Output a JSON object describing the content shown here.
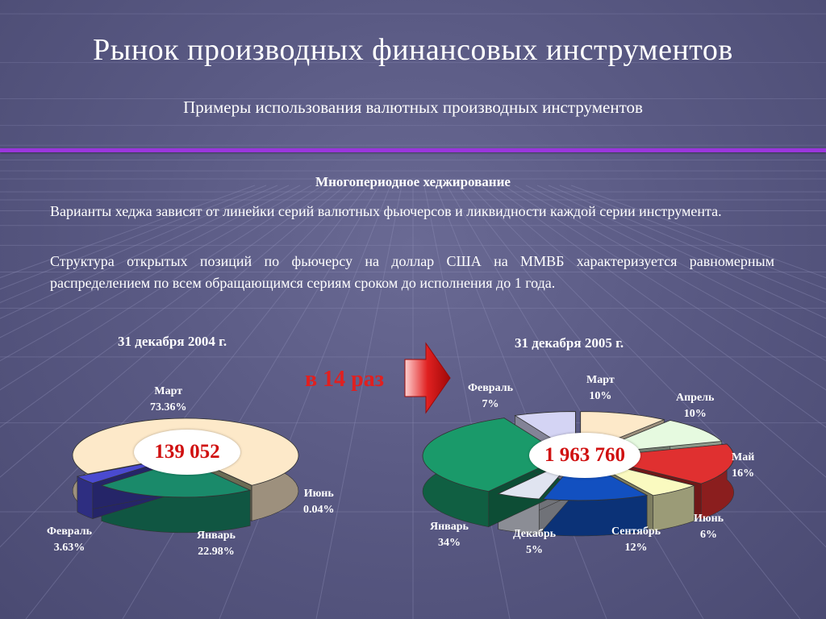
{
  "slide": {
    "title": "Рынок производных финансовых инструментов",
    "subtitle": "Примеры использования валютных производных инструментов",
    "section_heading": "Многопериодное хеджирование",
    "paragraphs": [
      "Варианты хеджа зависят от линейки серий валютных фьючерсов и ликвидности каждой серии инструмента.",
      "Структура открытых позиций по фьючерсу на доллар США на ММВБ характеризуется равномерным распределением по всем обращающимся сериям сроком до исполнения до 1 года."
    ],
    "growth_text": "в 14 раз",
    "colors": {
      "divider": "#9a36dc",
      "growth_text": "#e02020",
      "arrow": "#d81818",
      "total_text": "#d01010"
    }
  },
  "chart_data": [
    {
      "type": "pie",
      "title": "31 декабря  2004 г.",
      "total": "139 052",
      "slices": [
        {
          "label": "Март",
          "pct_text": "73.36%",
          "value": 73.36,
          "color": "#fde9c9"
        },
        {
          "label": "Июнь",
          "pct_text": "0.04%",
          "value": 0.04,
          "color": "#d8d8a8"
        },
        {
          "label": "Январь",
          "pct_text": "22.98%",
          "value": 22.98,
          "color": "#1a8a6a"
        },
        {
          "label": "Февраль",
          "pct_text": "3.63%",
          "value": 3.63,
          "color": "#4a4ad0"
        }
      ]
    },
    {
      "type": "pie",
      "title": "31 декабря 2005 г.",
      "total": "1 963 760",
      "slices": [
        {
          "label": "Март",
          "pct_text": "10%",
          "value": 10,
          "color": "#fde9c9"
        },
        {
          "label": "Апрель",
          "pct_text": "10%",
          "value": 10,
          "color": "#e6fae0"
        },
        {
          "label": "Май",
          "pct_text": "16%",
          "value": 16,
          "color": "#e03030"
        },
        {
          "label": "Июнь",
          "pct_text": "6%",
          "value": 6,
          "color": "#fafac0"
        },
        {
          "label": "Сентябрь",
          "pct_text": "12%",
          "value": 12,
          "color": "#1250c0"
        },
        {
          "label": "Декабрь",
          "pct_text": "5%",
          "value": 5,
          "color": "#e0e4f0"
        },
        {
          "label": "Январь",
          "pct_text": "34%",
          "value": 34,
          "color": "#1a9a6a"
        },
        {
          "label": "Февраль",
          "pct_text": "7%",
          "value": 7,
          "color": "#d4d4f4"
        }
      ]
    }
  ]
}
